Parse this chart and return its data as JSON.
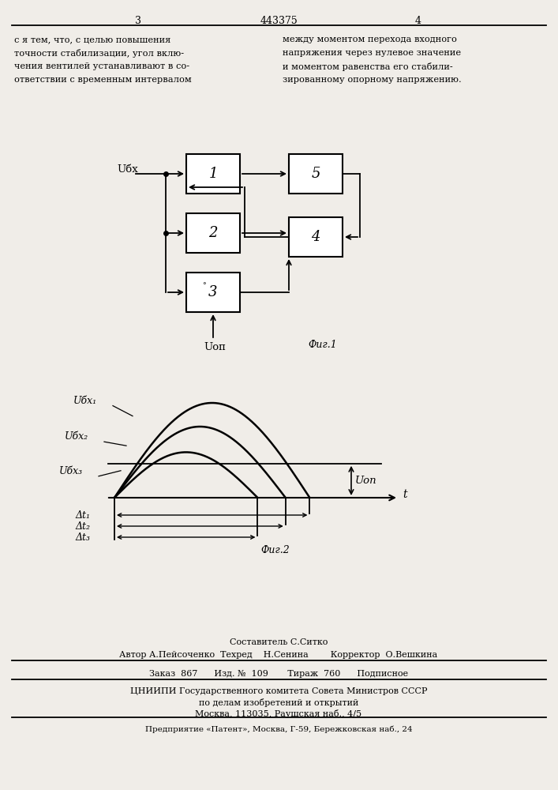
{
  "bg_color": "#f0ede8",
  "page_width": 7.07,
  "page_height": 10.0,
  "header_num": "443375",
  "header_page3": "3",
  "header_page4": "4",
  "text_left": "с я тем, что, с целью повышения\nточности стабилизации, угол вклю-\nчения вентилей устанавливают в со-\nответствии с временным интервалом",
  "text_right": "между моментом перехода входного\nнапряжения через нулевое значение\nи моментом равенства его стабили-\nзированному опорному напряжению.",
  "fig1_caption": "Фиг.1",
  "fig2_caption": "Фиг.2",
  "ubx_label": "Uбx",
  "uop_label": "Uоп",
  "ubx1_label": "Uбx₁",
  "ubx2_label": "Uбx₂",
  "ubx3_label": "Uбx₃",
  "uop2_label": "Uоп",
  "t_label": "t",
  "dt1_label": "Δt₁",
  "dt2_label": "Δt₂",
  "dt3_label": "Δt₃",
  "footer_composer": "Составитель С.Ситко",
  "footer_line1": "Автор А.Пейсоченко  Техред    Н.Сенина        Корректор  О.Вешкина",
  "footer_order": "Заказ  867      Изд. №  109       Тираж  760      Подписное",
  "footer_org1": "ЦНИИПИ Государственного комитета Совета Министров СССР",
  "footer_org2": "по делам изобретений и открытий",
  "footer_addr": "Москва, 113035, Раушская наб., 4/5",
  "footer_enterprise": "Предприятие «Патент», Москва, Г-59, Бережковская наб., 24"
}
